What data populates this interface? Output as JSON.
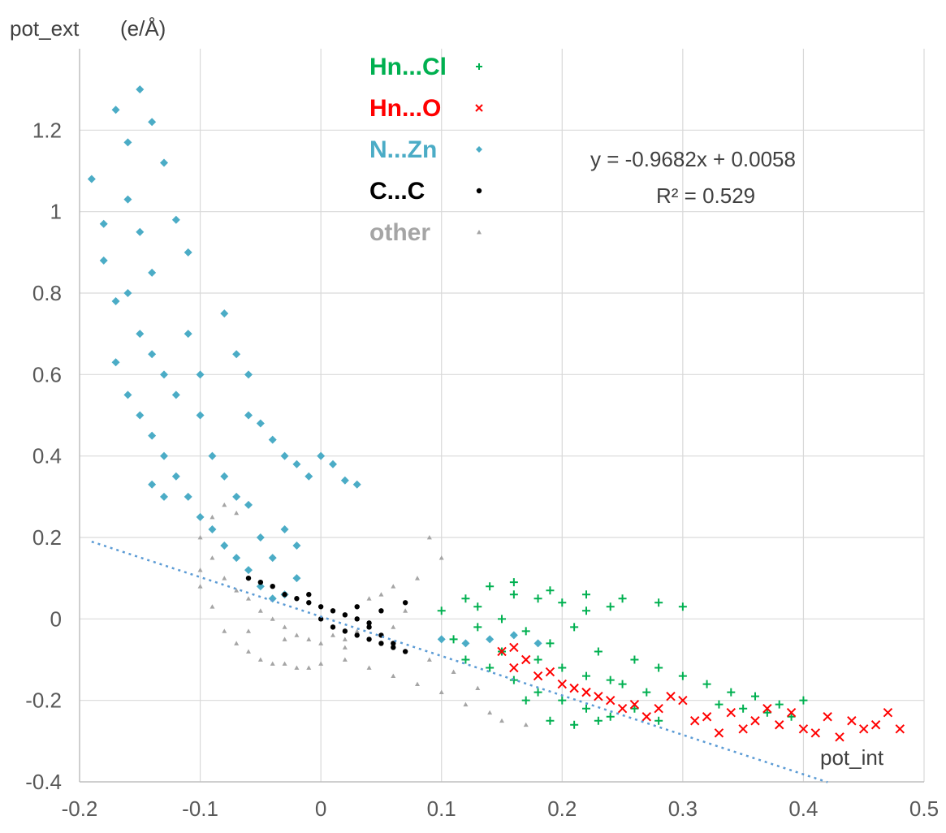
{
  "chart_data": {
    "type": "scatter",
    "xlabel": "pot_int",
    "ylabel": "pot_ext",
    "ylabel_unit": "(e/Å)",
    "xlim": [
      -0.2,
      0.5
    ],
    "ylim": [
      -0.4,
      1.4
    ],
    "x_ticks": [
      "-0.2",
      "-0.1",
      "0",
      "0.1",
      "0.2",
      "0.3",
      "0.4",
      "0.5"
    ],
    "y_ticks": [
      "-0.4",
      "-0.2",
      "0",
      "0.2",
      "0.4",
      "0.6",
      "0.8",
      "1",
      "1.2"
    ],
    "grid": true,
    "legend_position": "top-center",
    "trendline": {
      "equation": "y = -0.9682x + 0.0058",
      "r2": "R² = 0.529",
      "slope": -0.9682,
      "intercept": 0.0058,
      "x_range": [
        -0.19,
        0.42
      ],
      "color": "#5b9bd5"
    },
    "series": [
      {
        "name": "Hn...Cl",
        "color": "#00b050",
        "marker": "plus",
        "approx": true,
        "points": [
          [
            0.1,
            0.02
          ],
          [
            0.12,
            0.05
          ],
          [
            0.14,
            0.08
          ],
          [
            0.16,
            0.06
          ],
          [
            0.18,
            0.05
          ],
          [
            0.2,
            0.04
          ],
          [
            0.22,
            0.02
          ],
          [
            0.25,
            0.05
          ],
          [
            0.28,
            0.04
          ],
          [
            0.3,
            0.03
          ],
          [
            0.11,
            -0.05
          ],
          [
            0.13,
            -0.02
          ],
          [
            0.15,
            0.0
          ],
          [
            0.17,
            -0.03
          ],
          [
            0.19,
            -0.06
          ],
          [
            0.21,
            -0.02
          ],
          [
            0.23,
            -0.08
          ],
          [
            0.26,
            -0.1
          ],
          [
            0.28,
            -0.12
          ],
          [
            0.3,
            -0.14
          ],
          [
            0.32,
            -0.16
          ],
          [
            0.34,
            -0.18
          ],
          [
            0.36,
            -0.19
          ],
          [
            0.38,
            -0.21
          ],
          [
            0.4,
            -0.2
          ],
          [
            0.12,
            -0.1
          ],
          [
            0.14,
            -0.12
          ],
          [
            0.16,
            -0.15
          ],
          [
            0.18,
            -0.18
          ],
          [
            0.2,
            -0.2
          ],
          [
            0.22,
            -0.22
          ],
          [
            0.24,
            -0.24
          ],
          [
            0.26,
            -0.22
          ],
          [
            0.28,
            -0.25
          ],
          [
            0.19,
            -0.25
          ],
          [
            0.21,
            -0.26
          ],
          [
            0.23,
            -0.25
          ],
          [
            0.17,
            -0.2
          ],
          [
            0.15,
            -0.08
          ],
          [
            0.24,
            -0.15
          ],
          [
            0.27,
            -0.18
          ],
          [
            0.33,
            -0.21
          ],
          [
            0.35,
            -0.22
          ],
          [
            0.37,
            -0.23
          ],
          [
            0.39,
            -0.24
          ],
          [
            0.2,
            -0.12
          ],
          [
            0.22,
            -0.14
          ],
          [
            0.25,
            -0.16
          ],
          [
            0.13,
            0.03
          ],
          [
            0.16,
            0.09
          ],
          [
            0.19,
            0.07
          ],
          [
            0.22,
            0.06
          ],
          [
            0.24,
            0.03
          ],
          [
            0.18,
            -0.1
          ]
        ]
      },
      {
        "name": "Hn...O",
        "color": "#ff0000",
        "marker": "x",
        "approx": true,
        "points": [
          [
            0.15,
            -0.08
          ],
          [
            0.16,
            -0.12
          ],
          [
            0.17,
            -0.1
          ],
          [
            0.18,
            -0.14
          ],
          [
            0.2,
            -0.16
          ],
          [
            0.22,
            -0.18
          ],
          [
            0.24,
            -0.2
          ],
          [
            0.26,
            -0.21
          ],
          [
            0.28,
            -0.22
          ],
          [
            0.3,
            -0.2
          ],
          [
            0.32,
            -0.24
          ],
          [
            0.34,
            -0.23
          ],
          [
            0.36,
            -0.25
          ],
          [
            0.38,
            -0.26
          ],
          [
            0.4,
            -0.27
          ],
          [
            0.42,
            -0.24
          ],
          [
            0.44,
            -0.25
          ],
          [
            0.46,
            -0.26
          ],
          [
            0.48,
            -0.27
          ],
          [
            0.43,
            -0.29
          ],
          [
            0.47,
            -0.23
          ],
          [
            0.35,
            -0.27
          ],
          [
            0.33,
            -0.28
          ],
          [
            0.31,
            -0.25
          ],
          [
            0.27,
            -0.24
          ],
          [
            0.25,
            -0.22
          ],
          [
            0.23,
            -0.19
          ],
          [
            0.21,
            -0.17
          ],
          [
            0.19,
            -0.13
          ],
          [
            0.16,
            -0.07
          ],
          [
            0.29,
            -0.19
          ],
          [
            0.37,
            -0.22
          ],
          [
            0.39,
            -0.23
          ],
          [
            0.41,
            -0.28
          ],
          [
            0.45,
            -0.27
          ]
        ]
      },
      {
        "name": "N...Zn",
        "color": "#4bacc6",
        "marker": "diamond",
        "approx": true,
        "points": [
          [
            -0.19,
            1.08
          ],
          [
            -0.18,
            0.97
          ],
          [
            -0.17,
            1.25
          ],
          [
            -0.16,
            1.17
          ],
          [
            -0.15,
            1.3
          ],
          [
            -0.14,
            1.22
          ],
          [
            -0.13,
            1.12
          ],
          [
            -0.12,
            0.98
          ],
          [
            -0.11,
            0.9
          ],
          [
            -0.18,
            0.88
          ],
          [
            -0.17,
            0.78
          ],
          [
            -0.16,
            0.8
          ],
          [
            -0.15,
            0.7
          ],
          [
            -0.14,
            0.65
          ],
          [
            -0.13,
            0.6
          ],
          [
            -0.12,
            0.55
          ],
          [
            -0.1,
            0.5
          ],
          [
            -0.08,
            0.75
          ],
          [
            -0.07,
            0.65
          ],
          [
            -0.06,
            0.6
          ],
          [
            -0.05,
            0.48
          ],
          [
            -0.04,
            0.44
          ],
          [
            -0.03,
            0.4
          ],
          [
            -0.02,
            0.38
          ],
          [
            -0.01,
            0.35
          ],
          [
            0.0,
            0.4
          ],
          [
            0.01,
            0.38
          ],
          [
            0.02,
            0.34
          ],
          [
            0.03,
            0.33
          ],
          [
            -0.17,
            0.63
          ],
          [
            -0.16,
            0.55
          ],
          [
            -0.15,
            0.5
          ],
          [
            -0.14,
            0.45
          ],
          [
            -0.13,
            0.4
          ],
          [
            -0.12,
            0.35
          ],
          [
            -0.11,
            0.3
          ],
          [
            -0.1,
            0.25
          ],
          [
            -0.09,
            0.22
          ],
          [
            -0.08,
            0.18
          ],
          [
            -0.07,
            0.15
          ],
          [
            -0.06,
            0.12
          ],
          [
            -0.05,
            0.08
          ],
          [
            -0.04,
            0.05
          ],
          [
            -0.03,
            0.06
          ],
          [
            -0.02,
            0.1
          ],
          [
            -0.09,
            0.4
          ],
          [
            -0.08,
            0.35
          ],
          [
            -0.07,
            0.3
          ],
          [
            -0.06,
            0.28
          ],
          [
            -0.05,
            0.2
          ],
          [
            -0.04,
            0.15
          ],
          [
            -0.14,
            0.33
          ],
          [
            -0.13,
            0.3
          ],
          [
            -0.15,
            0.95
          ],
          [
            -0.16,
            1.03
          ],
          [
            -0.14,
            0.85
          ],
          [
            0.1,
            -0.05
          ],
          [
            0.12,
            -0.06
          ],
          [
            0.14,
            -0.05
          ],
          [
            0.16,
            -0.04
          ],
          [
            0.18,
            -0.06
          ],
          [
            -0.03,
            0.22
          ],
          [
            -0.02,
            0.18
          ],
          [
            -0.06,
            0.5
          ],
          [
            -0.1,
            0.6
          ],
          [
            -0.11,
            0.7
          ]
        ]
      },
      {
        "name": "C...C",
        "color": "#000000",
        "marker": "dot",
        "approx": true,
        "points": [
          [
            -0.06,
            0.1
          ],
          [
            -0.05,
            0.09
          ],
          [
            -0.04,
            0.08
          ],
          [
            -0.03,
            0.06
          ],
          [
            -0.02,
            0.05
          ],
          [
            -0.01,
            0.04
          ],
          [
            0.0,
            0.03
          ],
          [
            0.01,
            0.02
          ],
          [
            0.02,
            0.01
          ],
          [
            0.03,
            0.0
          ],
          [
            0.04,
            -0.02
          ],
          [
            0.05,
            -0.04
          ],
          [
            0.06,
            -0.06
          ],
          [
            0.07,
            -0.08
          ],
          [
            0.0,
            0.0
          ],
          [
            0.02,
            -0.03
          ],
          [
            0.04,
            -0.05
          ],
          [
            0.06,
            -0.07
          ],
          [
            0.03,
            -0.04
          ],
          [
            0.05,
            -0.06
          ],
          [
            0.01,
            -0.02
          ],
          [
            0.07,
            0.04
          ],
          [
            0.05,
            0.02
          ],
          [
            0.03,
            0.03
          ],
          [
            -0.01,
            0.06
          ],
          [
            0.04,
            -0.01
          ]
        ]
      },
      {
        "name": "other",
        "color": "#a5a5a5",
        "marker": "triangle",
        "approx": true,
        "points": [
          [
            -0.1,
            0.2
          ],
          [
            -0.09,
            0.15
          ],
          [
            -0.1,
            0.08
          ],
          [
            -0.09,
            0.03
          ],
          [
            -0.08,
            -0.03
          ],
          [
            -0.07,
            -0.06
          ],
          [
            -0.06,
            -0.08
          ],
          [
            -0.05,
            -0.1
          ],
          [
            -0.04,
            -0.11
          ],
          [
            -0.03,
            -0.11
          ],
          [
            -0.02,
            -0.12
          ],
          [
            -0.01,
            -0.12
          ],
          [
            0.0,
            -0.11
          ],
          [
            0.02,
            -0.1
          ],
          [
            0.04,
            -0.12
          ],
          [
            0.06,
            -0.14
          ],
          [
            0.08,
            -0.16
          ],
          [
            0.1,
            -0.18
          ],
          [
            0.12,
            -0.21
          ],
          [
            0.14,
            -0.23
          ],
          [
            0.15,
            -0.25
          ],
          [
            0.17,
            -0.26
          ],
          [
            -0.08,
            0.1
          ],
          [
            -0.07,
            0.07
          ],
          [
            -0.06,
            0.05
          ],
          [
            -0.05,
            0.02
          ],
          [
            -0.04,
            0.0
          ],
          [
            -0.03,
            -0.02
          ],
          [
            -0.02,
            -0.04
          ],
          [
            -0.01,
            -0.05
          ],
          [
            0.0,
            -0.06
          ],
          [
            0.01,
            -0.04
          ],
          [
            0.02,
            -0.05
          ],
          [
            0.03,
            -0.03
          ],
          [
            0.04,
            -0.02
          ],
          [
            0.05,
            -0.04
          ],
          [
            0.06,
            -0.02
          ],
          [
            0.07,
            0.02
          ],
          [
            0.08,
            0.1
          ],
          [
            0.09,
            0.2
          ],
          [
            0.1,
            0.15
          ],
          [
            0.05,
            0.06
          ],
          [
            0.06,
            0.08
          ],
          [
            0.04,
            0.05
          ],
          [
            -0.09,
            0.25
          ],
          [
            -0.08,
            0.28
          ],
          [
            -0.07,
            0.26
          ],
          [
            -0.03,
            -0.05
          ],
          [
            0.02,
            -0.07
          ],
          [
            0.09,
            -0.1
          ],
          [
            0.11,
            -0.13
          ],
          [
            0.13,
            -0.17
          ],
          [
            -0.1,
            0.12
          ],
          [
            -0.06,
            -0.03
          ]
        ]
      }
    ]
  }
}
